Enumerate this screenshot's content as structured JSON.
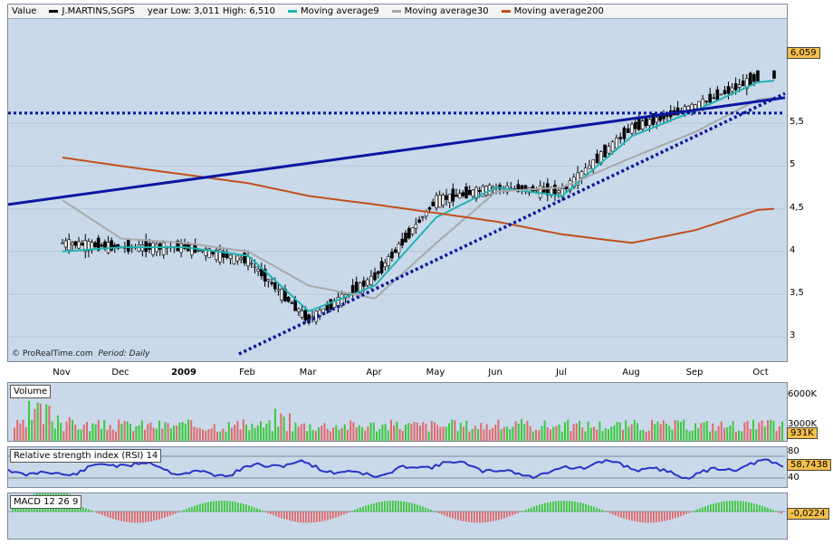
{
  "main_legend": {
    "value_label": "Value",
    "symbol": "J.MARTINS,SGPS",
    "year_range": "year Low: 3,011 High: 6,510",
    "ma9": "Moving average9",
    "ma30": "Moving average30",
    "ma200": "Moving average200"
  },
  "colors": {
    "ma9": "#22b3b3",
    "ma30": "#a9a9a9",
    "ma200": "#c0501c",
    "trend": "#0b17a0",
    "rsi": "#2a33c6",
    "up": "#3cc93c",
    "down": "#e06a6a",
    "tag": "#f5c04a",
    "panel_bg": "#c9d9ea"
  },
  "credit": "ProRealTime.com",
  "period": "Period: Daily",
  "price_axis": [
    "5,5",
    "5",
    "4,5",
    "4",
    "3,5",
    "3"
  ],
  "last_price": "6,059",
  "months": [
    "Nov",
    "Dec",
    "2009",
    "Feb",
    "Mar",
    "Apr",
    "May",
    "Jun",
    "Jul",
    "Aug",
    "Sep",
    "Oct"
  ],
  "volume": {
    "title": "Volume",
    "axis_top": "6000K",
    "axis_bottom": "3000K",
    "last": "931K"
  },
  "rsi": {
    "title": "Relative strength index (RSI) 14",
    "axis_top": "80",
    "axis_bottom": "40",
    "last": "58,7438"
  },
  "macd": {
    "title": "MACD 12 26 9",
    "last": "-0,0224"
  },
  "chart_data": {
    "type": "line",
    "title": "J.MARTINS,SGPS",
    "x": [
      "Nov",
      "Dec",
      "2009",
      "Feb",
      "Mar",
      "Apr",
      "May",
      "Jun",
      "Jul",
      "Aug",
      "Sep",
      "Oct"
    ],
    "series": [
      {
        "name": "Value",
        "values": [
          4.1,
          4.05,
          4.05,
          3.9,
          3.2,
          3.7,
          4.6,
          4.75,
          4.7,
          5.45,
          5.7,
          6.06
        ]
      },
      {
        "name": "Moving average9",
        "values": [
          4.0,
          4.05,
          4.05,
          3.95,
          3.3,
          3.6,
          4.4,
          4.75,
          4.65,
          5.35,
          5.65,
          6.0
        ]
      },
      {
        "name": "Moving average30",
        "values": [
          4.6,
          4.15,
          4.1,
          4.0,
          3.6,
          3.45,
          4.1,
          4.7,
          4.75,
          5.1,
          5.4,
          5.8
        ]
      },
      {
        "name": "Moving average200",
        "values": [
          5.1,
          5.0,
          4.9,
          4.8,
          4.65,
          4.55,
          4.45,
          4.35,
          4.2,
          4.1,
          4.25,
          4.5
        ]
      }
    ],
    "ylim": [
      2.8,
      6.7
    ]
  }
}
